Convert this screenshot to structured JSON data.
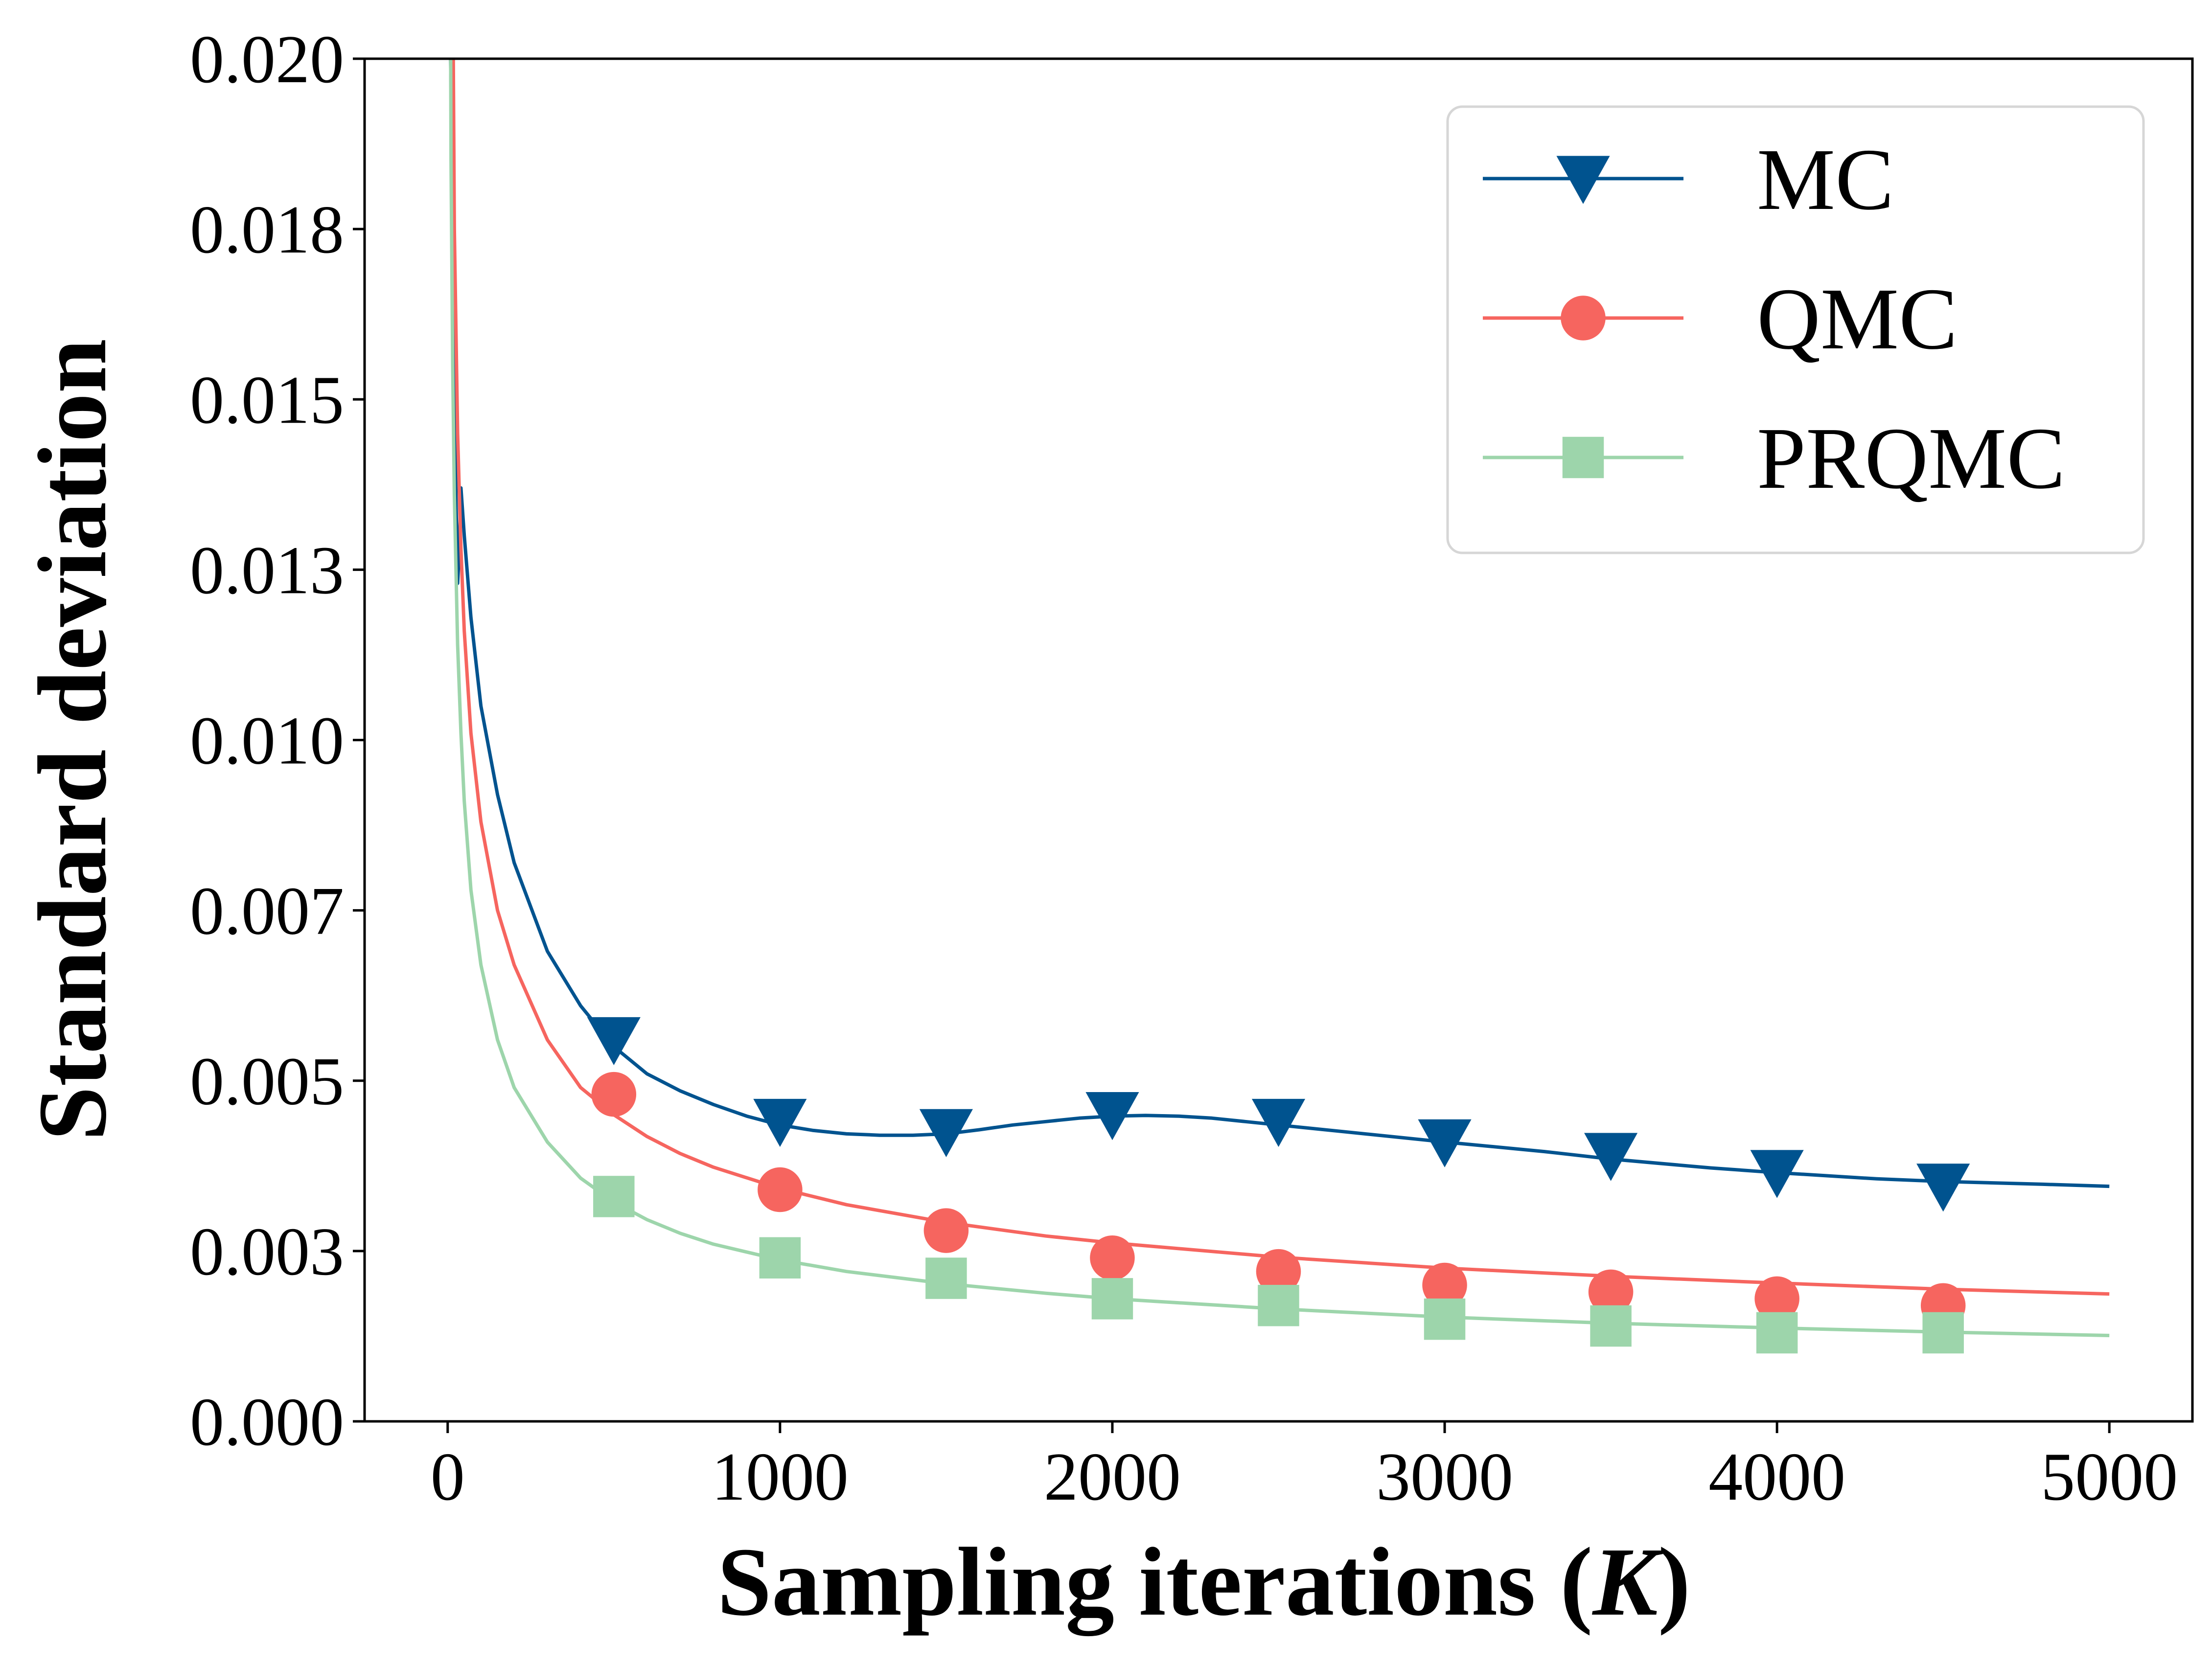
{
  "chart_data": {
    "type": "line",
    "title": "",
    "xlabel_main": "Sampling iterations (",
    "xlabel_var": "K",
    "xlabel_close": ")",
    "ylabel": "Standard deviation",
    "xlim": [
      -250,
      5250
    ],
    "ylim": [
      0,
      0.02
    ],
    "x_ticks": [
      0,
      1000,
      2000,
      3000,
      4000,
      5000
    ],
    "x_tick_labels": [
      "0",
      "1000",
      "2000",
      "3000",
      "4000",
      "5000"
    ],
    "y_ticks": [
      0,
      0.0025,
      0.005,
      0.0075,
      0.01,
      0.0125,
      0.015,
      0.0175,
      0.02
    ],
    "y_tick_labels": [
      "0.000",
      "0.003",
      "0.005",
      "0.007",
      "0.010",
      "0.013",
      "0.015",
      "0.018",
      "0.020"
    ],
    "grid": false,
    "legend_position": "top-right",
    "series": [
      {
        "name": "MC",
        "color": "#00538f",
        "marker": "triangle-down",
        "line_x": [
          5,
          15,
          25,
          30,
          35,
          40,
          50,
          70,
          100,
          150,
          200,
          300,
          400,
          500,
          600,
          700,
          800,
          900,
          1000,
          1100,
          1200,
          1300,
          1400,
          1500,
          1600,
          1700,
          1800,
          1900,
          2000,
          2100,
          2200,
          2300,
          2400,
          2500,
          2700,
          3000,
          3300,
          3500,
          3800,
          4000,
          4300,
          4500,
          4800,
          5000
        ],
        "line_y": [
          0.0215,
          0.0175,
          0.0135,
          0.0123,
          0.0128,
          0.0137,
          0.013,
          0.0118,
          0.0105,
          0.0092,
          0.0082,
          0.0069,
          0.0061,
          0.0055,
          0.0051,
          0.00485,
          0.00465,
          0.00448,
          0.00435,
          0.00427,
          0.00422,
          0.0042,
          0.0042,
          0.00422,
          0.00428,
          0.00435,
          0.0044,
          0.00445,
          0.00448,
          0.00449,
          0.00448,
          0.00445,
          0.0044,
          0.00435,
          0.00425,
          0.0041,
          0.00396,
          0.00385,
          0.00372,
          0.00365,
          0.00356,
          0.00352,
          0.00348,
          0.00345
        ],
        "marker_x": [
          500,
          1000,
          1500,
          2000,
          2500,
          3000,
          3500,
          4000,
          4500
        ],
        "marker_y": [
          0.0056,
          0.0044,
          0.00425,
          0.0045,
          0.0044,
          0.0041,
          0.0039,
          0.00365,
          0.00345
        ]
      },
      {
        "name": "QMC",
        "color": "#f6655f",
        "marker": "circle",
        "line_x": [
          15,
          20,
          30,
          40,
          50,
          70,
          100,
          150,
          200,
          300,
          400,
          500,
          600,
          700,
          800,
          1000,
          1200,
          1500,
          1800,
          2000,
          2500,
          3000,
          3500,
          4000,
          4500,
          5000
        ],
        "line_y": [
          0.0215,
          0.0175,
          0.0145,
          0.0128,
          0.0116,
          0.0101,
          0.0088,
          0.0075,
          0.0067,
          0.0056,
          0.0049,
          0.0045,
          0.00418,
          0.00393,
          0.00373,
          0.00342,
          0.00318,
          0.00292,
          0.00272,
          0.00262,
          0.00241,
          0.00225,
          0.00213,
          0.00203,
          0.00194,
          0.00187
        ],
        "marker_x": [
          500,
          1000,
          1500,
          2000,
          2500,
          3000,
          3500,
          4000,
          4500
        ],
        "marker_y": [
          0.0048,
          0.0034,
          0.0028,
          0.0024,
          0.0022,
          0.002,
          0.0019,
          0.0018,
          0.0017
        ]
      },
      {
        "name": "PRQMC",
        "color": "#9dd5ab",
        "marker": "square",
        "line_x": [
          8,
          10,
          15,
          20,
          30,
          40,
          50,
          70,
          100,
          150,
          200,
          300,
          400,
          500,
          600,
          700,
          800,
          1000,
          1200,
          1500,
          1800,
          2000,
          2500,
          3000,
          3500,
          4000,
          4500,
          5000
        ],
        "line_y": [
          0.0215,
          0.0185,
          0.0155,
          0.0136,
          0.0114,
          0.0101,
          0.0091,
          0.0078,
          0.0067,
          0.0056,
          0.0049,
          0.0041,
          0.00357,
          0.00322,
          0.00296,
          0.00276,
          0.0026,
          0.00237,
          0.0022,
          0.00202,
          0.00188,
          0.0018,
          0.00165,
          0.00153,
          0.00144,
          0.00137,
          0.00131,
          0.00126
        ],
        "marker_x": [
          500,
          1000,
          1500,
          2000,
          2500,
          3000,
          3500,
          4000,
          4500
        ],
        "marker_y": [
          0.0033,
          0.0024,
          0.0021,
          0.0018,
          0.0017,
          0.0015,
          0.0014,
          0.0013,
          0.0013
        ]
      }
    ]
  }
}
